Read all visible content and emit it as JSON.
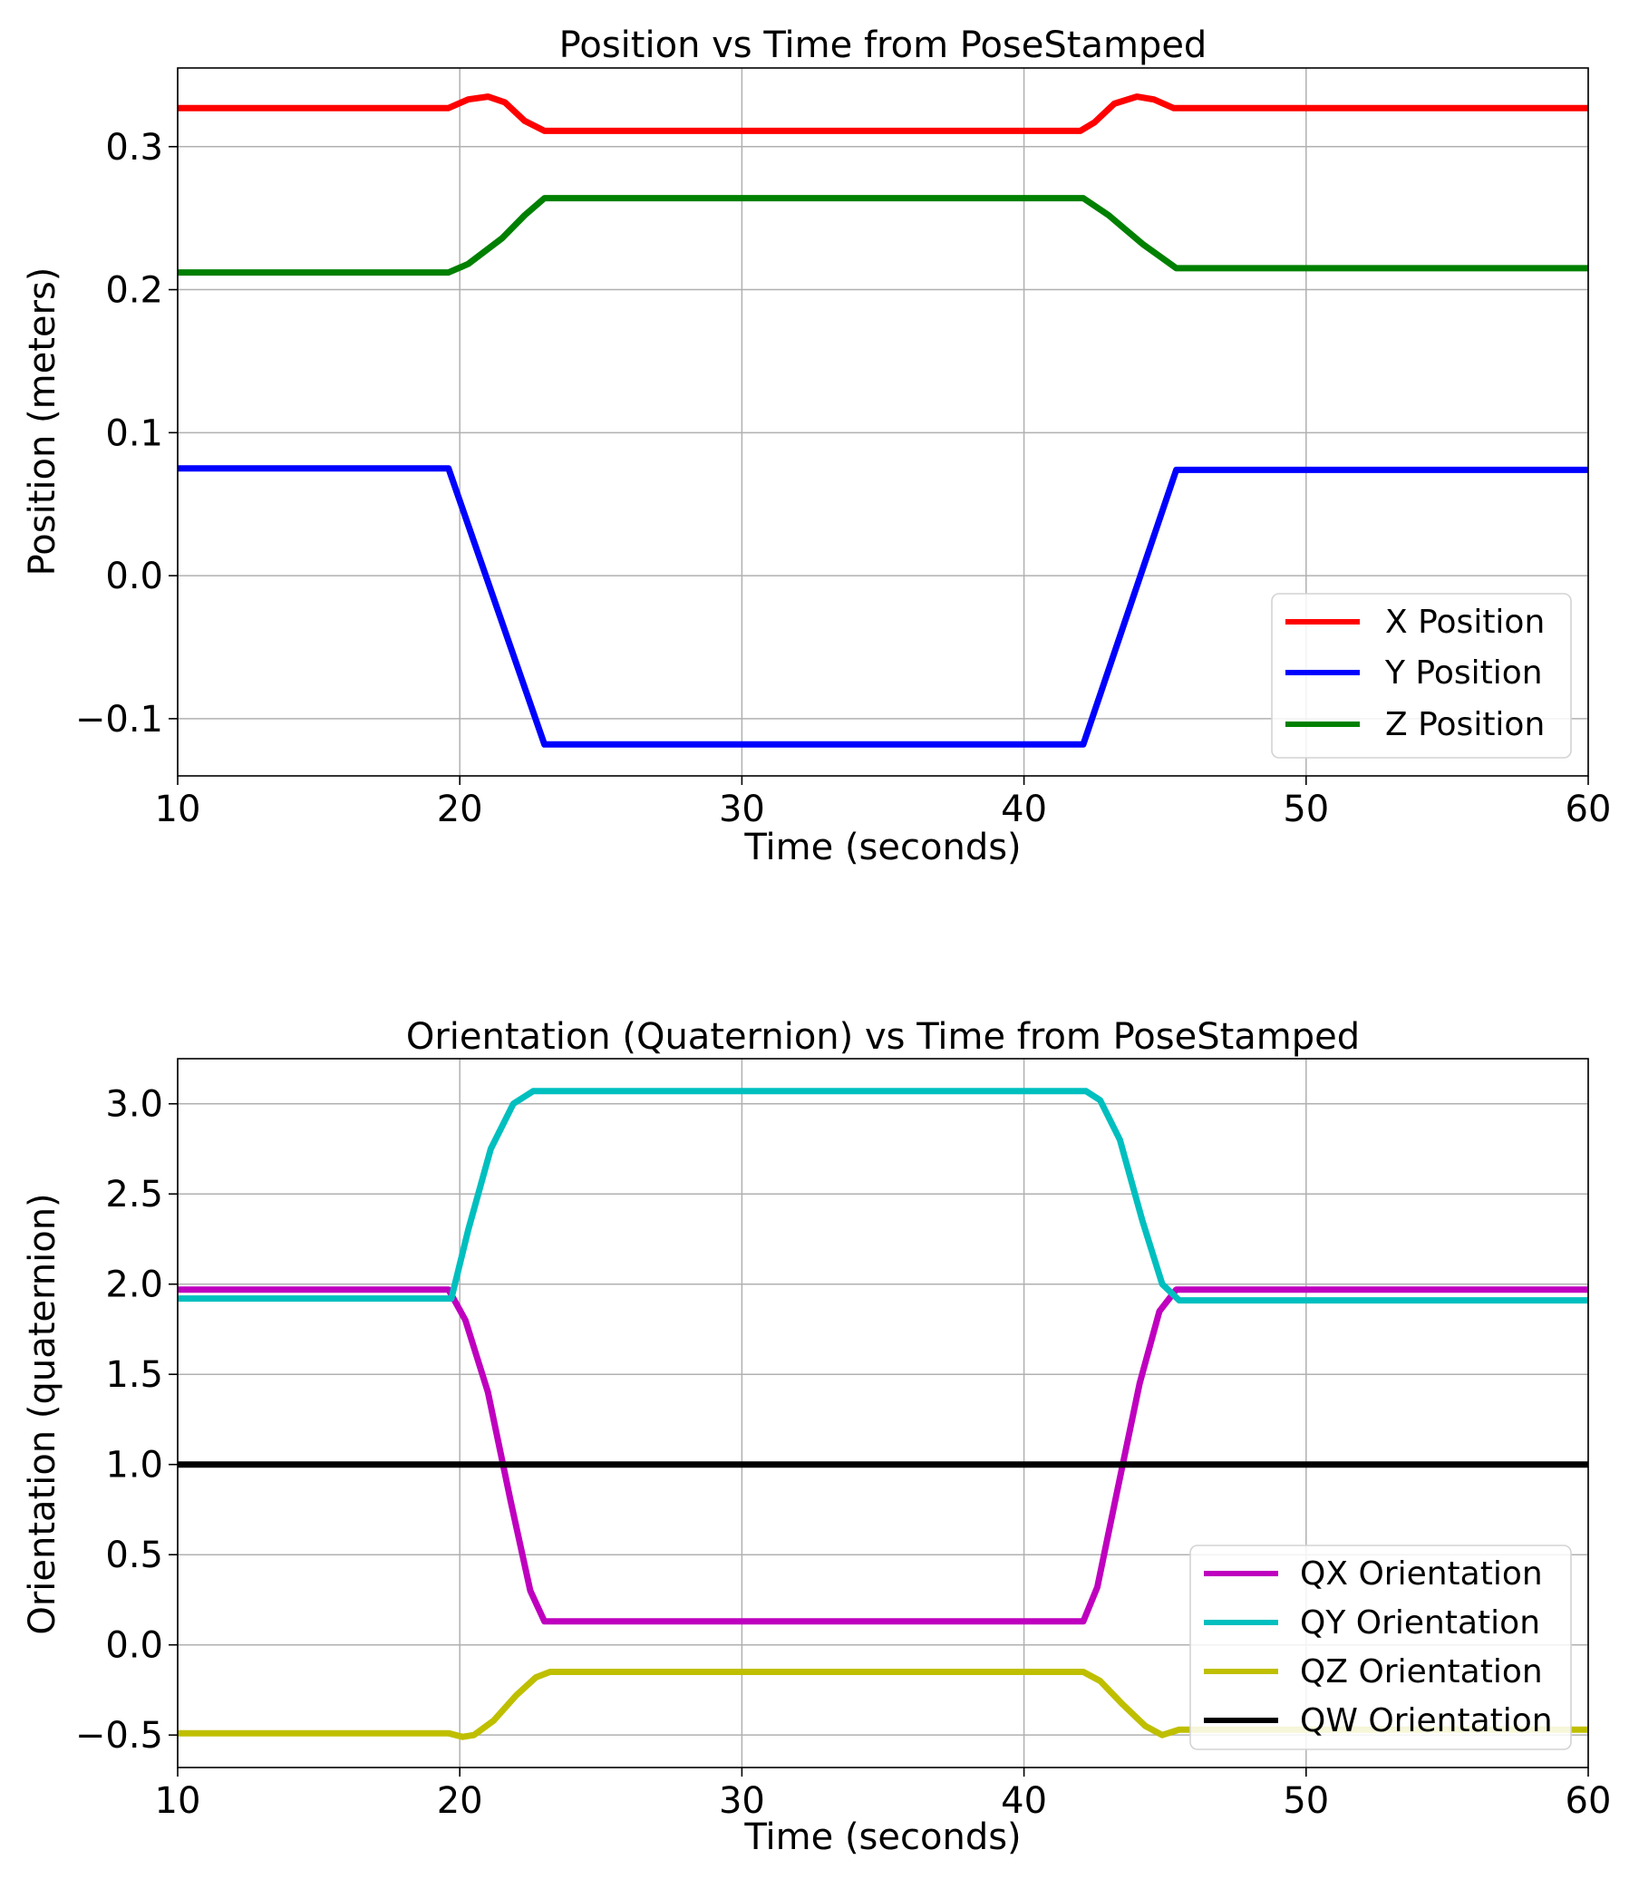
{
  "chart_data": [
    {
      "type": "line",
      "title": "Position vs Time from PoseStamped",
      "xlabel": "Time (seconds)",
      "ylabel": "Position (meters)",
      "xlim": [
        10,
        60
      ],
      "ylim": [
        -0.14,
        0.355
      ],
      "xticks": [
        10,
        20,
        30,
        40,
        50,
        60
      ],
      "xtick_labels": [
        "10",
        "20",
        "30",
        "40",
        "50",
        "60"
      ],
      "yticks": [
        -0.1,
        0.0,
        0.1,
        0.2,
        0.3
      ],
      "ytick_labels": [
        "−0.1",
        "0.0",
        "0.1",
        "0.2",
        "0.3"
      ],
      "grid": true,
      "legend_position": "lower-right",
      "series": [
        {
          "name": "X Position",
          "color": "#ff0000",
          "x": [
            10,
            19.6,
            20.3,
            21.0,
            21.6,
            22.3,
            23.0,
            30,
            42.0,
            42.5,
            43.2,
            44.0,
            44.6,
            45.3,
            50,
            60
          ],
          "y": [
            0.327,
            0.327,
            0.333,
            0.335,
            0.331,
            0.318,
            0.311,
            0.311,
            0.311,
            0.317,
            0.33,
            0.335,
            0.333,
            0.327,
            0.327,
            0.327
          ]
        },
        {
          "name": "Y Position",
          "color": "#0000ff",
          "x": [
            10,
            19.6,
            23.0,
            30,
            42.1,
            45.4,
            50,
            60
          ],
          "y": [
            0.075,
            0.075,
            -0.118,
            -0.118,
            -0.118,
            0.074,
            0.074,
            0.074
          ]
        },
        {
          "name": "Z Position",
          "color": "#008000",
          "x": [
            10,
            19.6,
            20.3,
            21.5,
            22.3,
            23.0,
            30,
            42.1,
            43.0,
            44.2,
            45.4,
            50,
            60
          ],
          "y": [
            0.212,
            0.212,
            0.218,
            0.236,
            0.252,
            0.264,
            0.264,
            0.264,
            0.252,
            0.232,
            0.215,
            0.215,
            0.215
          ]
        }
      ]
    },
    {
      "type": "line",
      "title": "Orientation (Quaternion) vs Time from PoseStamped",
      "xlabel": "Time (seconds)",
      "ylabel": "Orientation (quaternion)",
      "xlim": [
        10,
        60
      ],
      "ylim": [
        -0.68,
        3.25
      ],
      "xticks": [
        10,
        20,
        30,
        40,
        50,
        60
      ],
      "xtick_labels": [
        "10",
        "20",
        "30",
        "40",
        "50",
        "60"
      ],
      "yticks": [
        -0.5,
        0.0,
        0.5,
        1.0,
        1.5,
        2.0,
        2.5,
        3.0
      ],
      "ytick_labels": [
        "−0.5",
        "0.0",
        "0.5",
        "1.0",
        "1.5",
        "2.0",
        "2.5",
        "3.0"
      ],
      "grid": true,
      "legend_position": "lower-right",
      "series": [
        {
          "name": "QX Orientation",
          "color": "#bf00bf",
          "x": [
            10,
            19.6,
            20.2,
            21.0,
            21.8,
            22.5,
            23.0,
            30,
            42.1,
            42.6,
            43.3,
            44.1,
            44.8,
            45.4,
            50,
            60
          ],
          "y": [
            1.97,
            1.97,
            1.8,
            1.4,
            0.8,
            0.3,
            0.13,
            0.13,
            0.13,
            0.32,
            0.85,
            1.45,
            1.85,
            1.97,
            1.97,
            1.97
          ]
        },
        {
          "name": "QY Orientation",
          "color": "#00bfbf",
          "x": [
            10,
            19.7,
            20.3,
            21.1,
            21.9,
            22.6,
            23.0,
            30,
            42.2,
            42.7,
            43.4,
            44.2,
            44.9,
            45.5,
            50,
            60
          ],
          "y": [
            1.92,
            1.92,
            2.3,
            2.75,
            3.0,
            3.07,
            3.07,
            3.07,
            3.07,
            3.02,
            2.8,
            2.35,
            2.0,
            1.91,
            1.91,
            1.91
          ]
        },
        {
          "name": "QZ Orientation",
          "color": "#bfbf00",
          "x": [
            10,
            19.6,
            20.1,
            20.5,
            21.2,
            22.0,
            22.7,
            23.2,
            30,
            42.1,
            42.7,
            43.5,
            44.3,
            44.9,
            45.5,
            50,
            60
          ],
          "y": [
            -0.49,
            -0.49,
            -0.51,
            -0.5,
            -0.42,
            -0.28,
            -0.18,
            -0.15,
            -0.15,
            -0.15,
            -0.2,
            -0.33,
            -0.45,
            -0.5,
            -0.47,
            -0.47,
            -0.47
          ]
        },
        {
          "name": "QW Orientation",
          "color": "#000000",
          "x": [
            10,
            60
          ],
          "y": [
            1.0,
            1.0
          ]
        }
      ]
    }
  ]
}
